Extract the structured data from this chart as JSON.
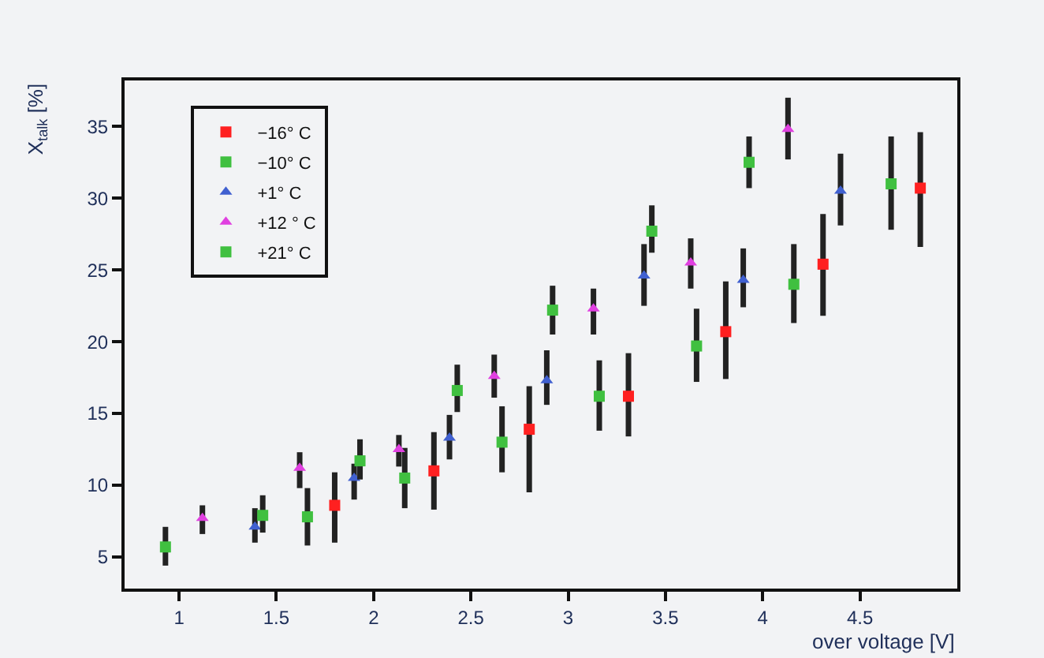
{
  "chart_data": {
    "type": "scatter",
    "xlabel": "over voltage [V]",
    "ylabel": "X$_{talk}$ [%]",
    "xlim": [
      0.72,
      5.0
    ],
    "ylim": [
      2.8,
      38.2
    ],
    "xticks": [
      1,
      1.5,
      2,
      2.5,
      3,
      3.5,
      4,
      4.5
    ],
    "yticks": [
      5,
      10,
      15,
      20,
      25,
      30,
      35
    ],
    "grid": false,
    "legend": "top left",
    "series": [
      {
        "name": "−16° C",
        "color": "#ff2020",
        "marker": "square",
        "x": [
          1.8,
          2.31,
          2.8,
          3.31,
          3.81,
          4.31,
          4.81
        ],
        "values": [
          8.6,
          11.0,
          13.9,
          16.2,
          20.7,
          25.4,
          30.7
        ],
        "errors": [
          [
            6.0,
            10.9
          ],
          [
            8.3,
            13.7
          ],
          [
            9.5,
            16.9
          ],
          [
            13.4,
            19.2
          ],
          [
            17.4,
            24.2
          ],
          [
            21.8,
            28.9
          ],
          [
            26.6,
            34.6
          ]
        ]
      },
      {
        "name": "−10° C",
        "color": "#40c040",
        "marker": "square",
        "x": [
          1.66,
          2.16,
          2.66,
          3.16,
          3.66,
          4.16,
          4.66
        ],
        "values": [
          7.8,
          10.5,
          13.0,
          16.2,
          19.7,
          24.0,
          31.0
        ],
        "errors": [
          [
            5.8,
            9.8
          ],
          [
            8.4,
            12.6
          ],
          [
            10.9,
            15.5
          ],
          [
            13.8,
            18.7
          ],
          [
            17.2,
            22.3
          ],
          [
            21.3,
            26.8
          ],
          [
            27.8,
            34.3
          ]
        ]
      },
      {
        "name": "+1° C",
        "color": "#4060d0",
        "marker": "triangle",
        "x": [
          1.39,
          1.9,
          2.39,
          2.89,
          3.39,
          3.9,
          4.4
        ],
        "values": [
          7.1,
          10.5,
          13.3,
          17.3,
          24.6,
          24.3,
          30.5
        ],
        "errors": [
          [
            6.0,
            8.4
          ],
          [
            9.0,
            11.5
          ],
          [
            11.8,
            14.9
          ],
          [
            15.6,
            19.4
          ],
          [
            22.5,
            26.8
          ],
          [
            22.4,
            26.5
          ],
          [
            28.1,
            33.1
          ]
        ]
      },
      {
        "name": "+12 ° C",
        "color": "#e040e0",
        "marker": "triangle",
        "x": [
          1.12,
          1.62,
          2.13,
          2.62,
          3.13,
          3.63,
          4.13
        ],
        "values": [
          7.7,
          11.2,
          12.5,
          17.6,
          22.3,
          25.5,
          34.8
        ],
        "errors": [
          [
            6.6,
            8.6
          ],
          [
            9.8,
            12.3
          ],
          [
            11.3,
            13.5
          ],
          [
            16.1,
            19.1
          ],
          [
            20.5,
            23.7
          ],
          [
            23.7,
            27.2
          ],
          [
            32.7,
            37.0
          ]
        ]
      },
      {
        "name": "+21° C",
        "color": "#40c040",
        "marker": "square",
        "x": [
          0.93,
          1.43,
          1.93,
          2.43,
          2.92,
          3.43,
          3.93
        ],
        "values": [
          5.7,
          7.9,
          11.7,
          16.6,
          22.2,
          27.7,
          32.5
        ],
        "errors": [
          [
            4.4,
            7.1
          ],
          [
            6.7,
            9.3
          ],
          [
            10.4,
            13.2
          ],
          [
            15.1,
            18.4
          ],
          [
            20.5,
            23.9
          ],
          [
            26.2,
            29.5
          ],
          [
            30.7,
            34.3
          ]
        ]
      }
    ]
  }
}
